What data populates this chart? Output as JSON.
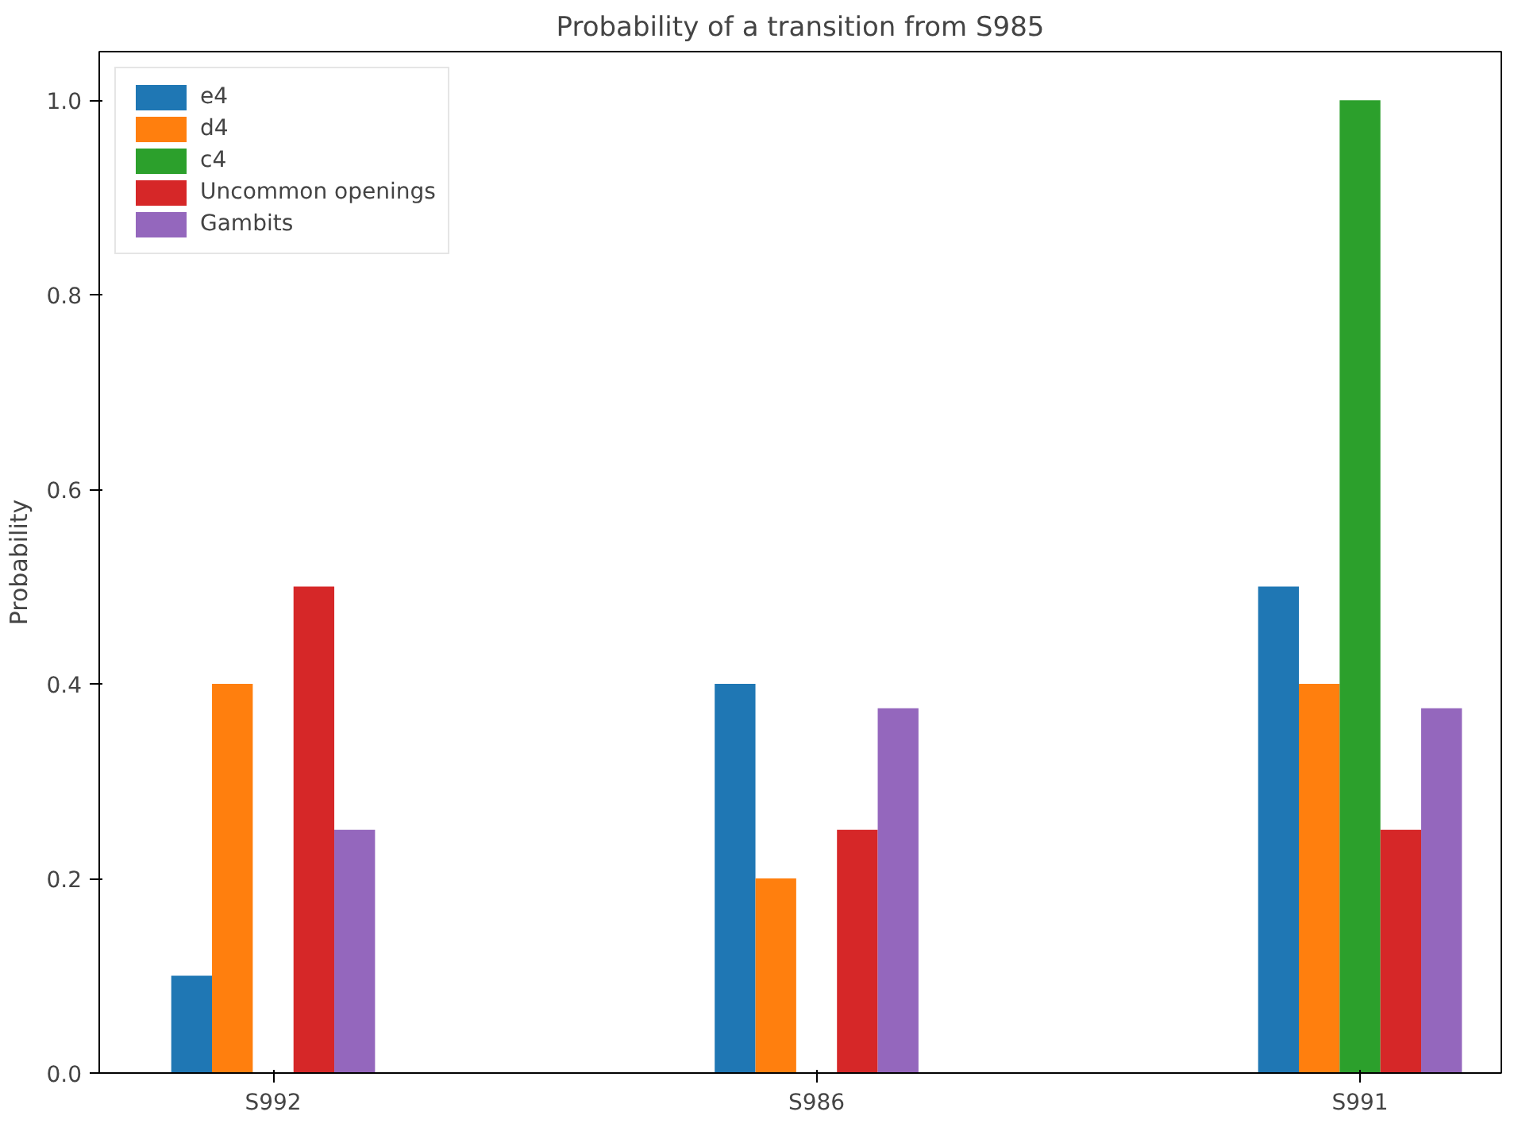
{
  "chart_data": {
    "type": "bar",
    "title": "Probability of a transition from S985",
    "ylabel": "Probability",
    "categories": [
      "S992",
      "S986",
      "S991"
    ],
    "series": [
      {
        "name": "e4",
        "color": "#1f77b4",
        "values": [
          0.1,
          0.4,
          0.5
        ]
      },
      {
        "name": "d4",
        "color": "#ff7f0e",
        "values": [
          0.4,
          0.2,
          0.4
        ]
      },
      {
        "name": "c4",
        "color": "#2ca02c",
        "values": [
          0,
          0,
          1.0
        ]
      },
      {
        "name": "Uncommon openings",
        "color": "#d62728",
        "values": [
          0.5,
          0.25,
          0.25
        ]
      },
      {
        "name": "Gambits",
        "color": "#9467bd",
        "values": [
          0.25,
          0.375,
          0.375
        ]
      }
    ],
    "ylim": [
      0,
      1.05
    ],
    "yticks": [
      {
        "value": 0,
        "label": "0.0"
      },
      {
        "value": 0.2,
        "label": "0.2"
      },
      {
        "value": 0.4,
        "label": "0.4"
      },
      {
        "value": 0.6,
        "label": "0.6"
      },
      {
        "value": 0.8,
        "label": "0.8"
      },
      {
        "value": 1.0,
        "label": "1.0"
      }
    ],
    "grid": false,
    "legend": "top left"
  }
}
